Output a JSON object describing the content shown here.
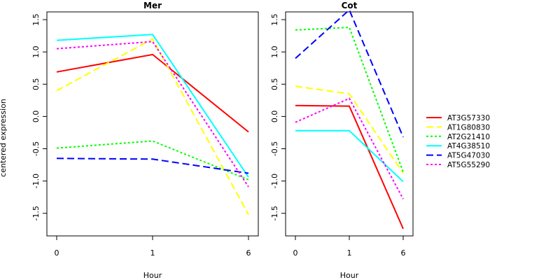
{
  "chart_data": [
    {
      "type": "line",
      "title": "Mer",
      "xlabel": "Hour",
      "ylabel": "centered expression",
      "categories": [
        "0",
        "1",
        "6"
      ],
      "ylim": [
        -1.85,
        1.62
      ],
      "yticks": [
        "-1.5",
        "-1.0",
        "-0.5",
        "0.0",
        "0.5",
        "1.0",
        "1.5"
      ],
      "series": [
        {
          "name": "AT3G57330",
          "values": [
            0.69,
            0.96,
            -0.24
          ]
        },
        {
          "name": "AT1G80830",
          "values": [
            0.4,
            1.2,
            -1.52
          ]
        },
        {
          "name": "AT2G21410",
          "values": [
            -0.49,
            -0.38,
            -0.98
          ]
        },
        {
          "name": "AT4G38510",
          "values": [
            1.18,
            1.27,
            -0.94
          ]
        },
        {
          "name": "AT5G47030",
          "values": [
            -0.65,
            -0.66,
            -0.88
          ]
        },
        {
          "name": "AT5G55290",
          "values": [
            1.05,
            1.16,
            -1.09
          ]
        }
      ]
    },
    {
      "type": "line",
      "title": "Cot",
      "xlabel": "Hour",
      "ylabel": "",
      "categories": [
        "0",
        "1",
        "6"
      ],
      "ylim": [
        -1.85,
        1.62
      ],
      "yticks": [
        "-1.5",
        "-1.0",
        "-0.5",
        "0.0",
        "0.5",
        "1.0",
        "1.5"
      ],
      "series": [
        {
          "name": "AT3G57330",
          "values": [
            0.17,
            0.16,
            -1.74
          ]
        },
        {
          "name": "AT1G80830",
          "values": [
            0.47,
            0.35,
            -0.88
          ]
        },
        {
          "name": "AT2G21410",
          "values": [
            1.34,
            1.38,
            -0.86
          ]
        },
        {
          "name": "AT4G38510",
          "values": [
            -0.22,
            -0.22,
            -1.01
          ]
        },
        {
          "name": "AT5G47030",
          "values": [
            0.9,
            1.65,
            -0.32
          ]
        },
        {
          "name": "AT5G55290",
          "values": [
            -0.09,
            0.28,
            -1.28
          ]
        }
      ]
    }
  ],
  "legend": {
    "placement": "right",
    "entries": [
      {
        "name": "AT3G57330",
        "color": "#ff0000",
        "dash": "solid"
      },
      {
        "name": "AT1G80830",
        "color": "#ffff00",
        "dash": "dashed"
      },
      {
        "name": "AT2G21410",
        "color": "#00ff00",
        "dash": "dotted"
      },
      {
        "name": "AT4G38510",
        "color": "#00ffff",
        "dash": "solid"
      },
      {
        "name": "AT5G47030",
        "color": "#0000ff",
        "dash": "dashed"
      },
      {
        "name": "AT5G55290",
        "color": "#ff00ff",
        "dash": "dotted"
      }
    ]
  }
}
